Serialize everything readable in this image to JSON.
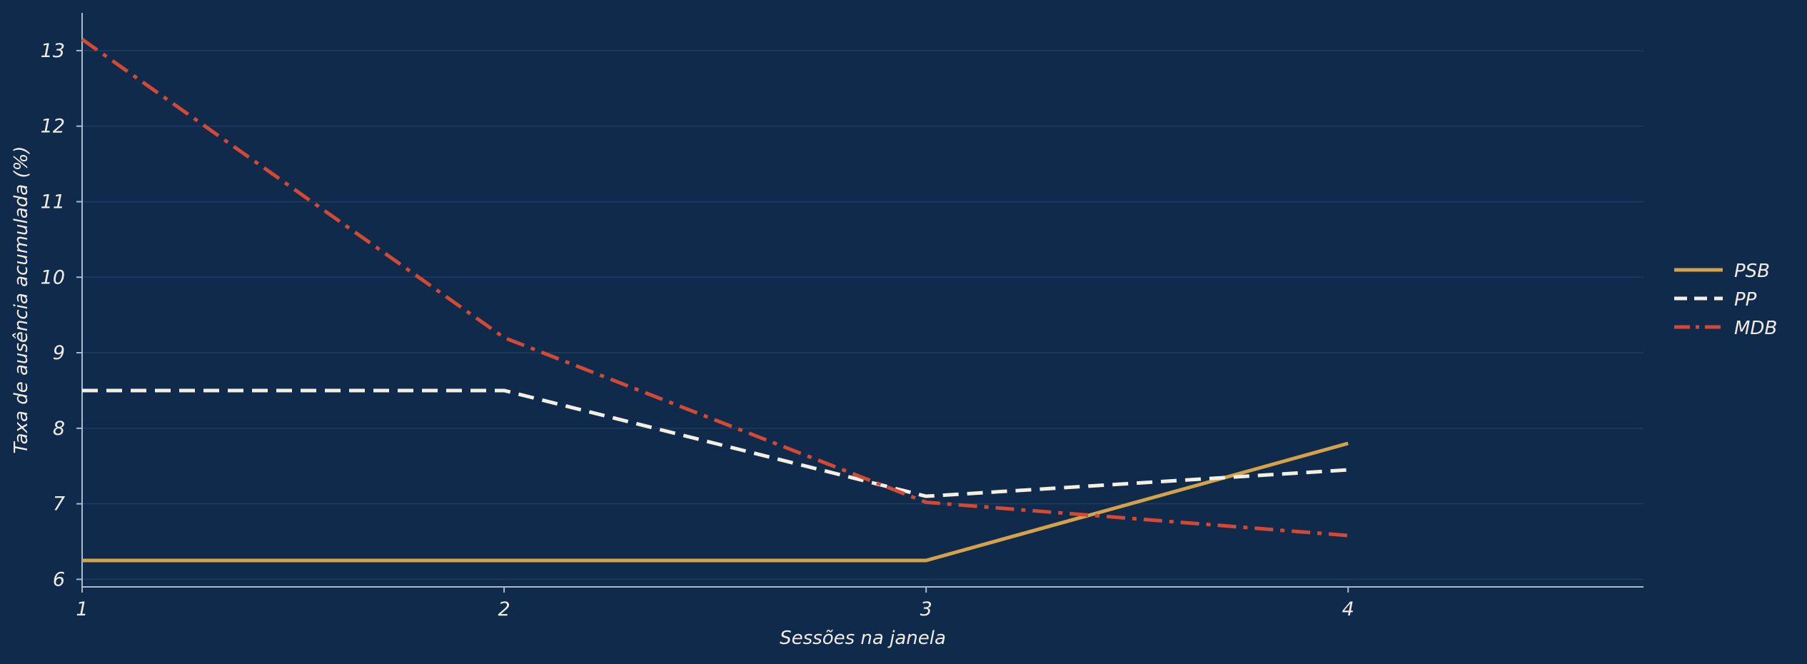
{
  "chart_data": {
    "type": "line",
    "title": "",
    "xlabel": "Sessões na janela",
    "ylabel": "Taxa de ausência acumulada (%)",
    "x": [
      1,
      2,
      3,
      4
    ],
    "xlim": [
      1,
      4.7
    ],
    "ylim": [
      5.9,
      13.5
    ],
    "xticks": [
      "1",
      "2",
      "3",
      "4"
    ],
    "yticks": [
      "6",
      "7",
      "8",
      "9",
      "10",
      "11",
      "12",
      "13"
    ],
    "grid": "horizontal",
    "legend_position": "right",
    "background_color": "#0f2a4a",
    "series": [
      {
        "name": "PSB",
        "values": [
          6.25,
          6.25,
          6.25,
          7.8
        ],
        "color": "#d4a24a",
        "dash": "solid"
      },
      {
        "name": "PP",
        "values": [
          8.5,
          8.5,
          7.1,
          7.45
        ],
        "color": "#f3efe3",
        "dash": "dashed"
      },
      {
        "name": "MDB",
        "values": [
          13.15,
          9.2,
          7.02,
          6.58
        ],
        "color": "#d24a35",
        "dash": "dashdot"
      }
    ]
  }
}
